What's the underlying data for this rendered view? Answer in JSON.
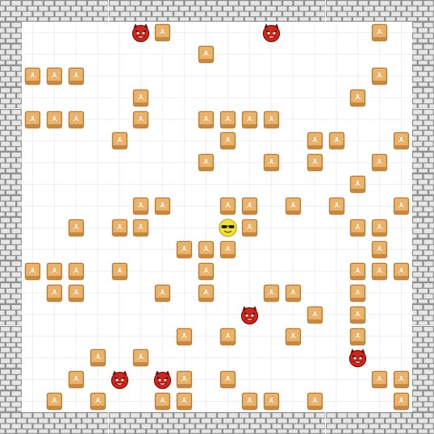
{
  "game": {
    "grid": {
      "cols": 20,
      "rows": 20
    },
    "colors": {
      "wall_light": "#e6e6e6",
      "wall_mortar": "#8a8a8a",
      "box_face": "#e9b36b",
      "box_edge": "#b9782e",
      "box_shadow": "#c8893f",
      "devil_red": "#d0251b",
      "devil_dark": "#7a0b07",
      "player_yellow": "#f4e12c"
    },
    "icons": {
      "wall": "brick-wall-icon",
      "box": "crate-icon",
      "enemy": "devil-face-icon",
      "player": "sunglasses-smiley-icon"
    },
    "player": {
      "col": 10,
      "row": 10
    },
    "enemies": [
      {
        "col": 6,
        "row": 1
      },
      {
        "col": 12,
        "row": 1
      },
      {
        "col": 11,
        "row": 14
      },
      {
        "col": 16,
        "row": 16
      },
      {
        "col": 5,
        "row": 17
      },
      {
        "col": 7,
        "row": 17
      }
    ],
    "boxes": [
      [
        7,
        1
      ],
      [
        17,
        1
      ],
      [
        9,
        2
      ],
      [
        1,
        3
      ],
      [
        2,
        3
      ],
      [
        3,
        3
      ],
      [
        17,
        3
      ],
      [
        6,
        4
      ],
      [
        16,
        4
      ],
      [
        1,
        5
      ],
      [
        2,
        5
      ],
      [
        3,
        5
      ],
      [
        6,
        5
      ],
      [
        9,
        5
      ],
      [
        10,
        5
      ],
      [
        11,
        5
      ],
      [
        12,
        5
      ],
      [
        5,
        6
      ],
      [
        10,
        6
      ],
      [
        14,
        6
      ],
      [
        15,
        6
      ],
      [
        18,
        6
      ],
      [
        9,
        7
      ],
      [
        12,
        7
      ],
      [
        14,
        7
      ],
      [
        17,
        7
      ],
      [
        16,
        8
      ],
      [
        6,
        9
      ],
      [
        7,
        9
      ],
      [
        10,
        9
      ],
      [
        11,
        9
      ],
      [
        13,
        9
      ],
      [
        15,
        9
      ],
      [
        18,
        9
      ],
      [
        3,
        10
      ],
      [
        5,
        10
      ],
      [
        6,
        10
      ],
      [
        11,
        10
      ],
      [
        16,
        10
      ],
      [
        17,
        10
      ],
      [
        8,
        11
      ],
      [
        9,
        11
      ],
      [
        10,
        11
      ],
      [
        17,
        11
      ],
      [
        1,
        12
      ],
      [
        2,
        12
      ],
      [
        3,
        12
      ],
      [
        5,
        12
      ],
      [
        9,
        12
      ],
      [
        16,
        12
      ],
      [
        17,
        12
      ],
      [
        18,
        12
      ],
      [
        2,
        13
      ],
      [
        3,
        13
      ],
      [
        7,
        13
      ],
      [
        9,
        13
      ],
      [
        12,
        13
      ],
      [
        13,
        13
      ],
      [
        16,
        13
      ],
      [
        14,
        14
      ],
      [
        16,
        14
      ],
      [
        8,
        15
      ],
      [
        10,
        15
      ],
      [
        13,
        15
      ],
      [
        16,
        15
      ],
      [
        4,
        16
      ],
      [
        6,
        16
      ],
      [
        3,
        17
      ],
      [
        8,
        17
      ],
      [
        10,
        17
      ],
      [
        17,
        17
      ],
      [
        18,
        17
      ],
      [
        2,
        18
      ],
      [
        4,
        18
      ],
      [
        7,
        18
      ],
      [
        8,
        18
      ],
      [
        11,
        18
      ],
      [
        12,
        18
      ],
      [
        14,
        18
      ],
      [
        18,
        18
      ]
    ]
  }
}
